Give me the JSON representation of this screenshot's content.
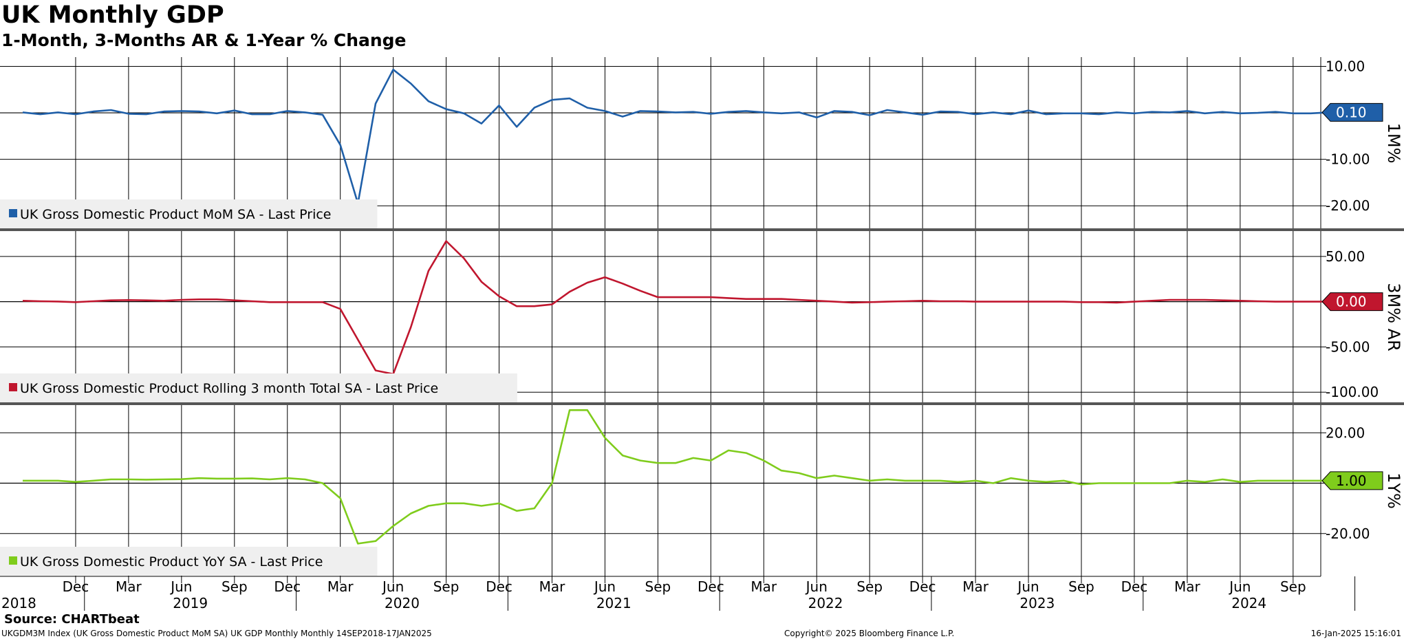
{
  "header": {
    "title": "UK Monthly GDP",
    "subtitle": "1-Month, 3-Months AR & 1-Year % Change"
  },
  "footer": {
    "source": "Source: CHARTbeat",
    "left": "UKGDM3M Index (UK Gross Domestic Product MoM SA) UK GDP Monthly  Monthly 14SEP2018-17JAN2025",
    "middle": "Copyright© 2025 Bloomberg Finance L.P.",
    "right": "16-Jan-2025 15:16:01"
  },
  "chart_data": [
    {
      "type": "line",
      "axis_label": "1M%",
      "ylim": [
        -25,
        12
      ],
      "yticks": [
        10,
        0,
        -10,
        -20
      ],
      "ytick_labels": [
        "10.00",
        "",
        "-10.00",
        "-20.00"
      ],
      "last_value_label": "0.10",
      "color": "#1f5fa8",
      "legend": "UK Gross Domestic Product MoM SA - Last Price",
      "start": "2018-09",
      "values": [
        0.1,
        -0.3,
        0.1,
        -0.3,
        0.3,
        0.6,
        -0.2,
        -0.3,
        0.3,
        0.4,
        0.3,
        -0.1,
        0.5,
        -0.3,
        -0.3,
        0.4,
        0.1,
        -0.4,
        -6.9,
        -19.5,
        2.0,
        9.3,
        6.3,
        2.5,
        0.8,
        -0.1,
        -2.3,
        1.6,
        -3.0,
        1.1,
        2.8,
        3.1,
        1.1,
        0.4,
        -0.8,
        0.4,
        0.3,
        0.1,
        0.2,
        -0.2,
        0.2,
        0.4,
        0.1,
        -0.1,
        0.1,
        -1.0,
        0.4,
        0.2,
        -0.5,
        0.6,
        0.1,
        -0.4,
        0.3,
        0.2,
        -0.3,
        0.1,
        -0.3,
        0.5,
        -0.3,
        -0.1,
        -0.1,
        -0.3,
        0.1,
        -0.1,
        0.2,
        0.1,
        0.4,
        -0.1,
        0.2,
        -0.1,
        0.0,
        0.2,
        -0.1,
        -0.1,
        0.1
      ]
    },
    {
      "type": "line",
      "axis_label": "3M% AR",
      "ylim": [
        -112,
        78
      ],
      "yticks": [
        50,
        0,
        -50,
        -100
      ],
      "ytick_labels": [
        "50.00",
        "",
        "-50.00",
        "-100.00"
      ],
      "last_value_label": "0.00",
      "color": "#c0162e",
      "legend": "UK Gross Domestic Product Rolling 3 month Total SA - Last Price",
      "start": "2018-09",
      "values": [
        1,
        0.5,
        0.2,
        -0.5,
        0.5,
        1.5,
        1.8,
        1.5,
        1,
        2,
        2.5,
        2.5,
        1.5,
        0.5,
        -0.5,
        -0.5,
        -0.5,
        -0.5,
        -8,
        -42,
        -76,
        -80,
        -28,
        34,
        67,
        48,
        22,
        6,
        -5,
        -5,
        -3,
        11,
        21,
        27,
        20,
        12,
        5,
        5,
        5,
        5,
        4,
        3,
        3,
        3,
        2,
        1,
        0,
        -1,
        -0.5,
        0,
        0.5,
        1,
        0.5,
        0.5,
        0,
        0,
        0,
        0,
        0,
        0,
        -0.5,
        -0.5,
        -1,
        0,
        1,
        2,
        2,
        2,
        1.5,
        1,
        0.5,
        0,
        0,
        0,
        0
      ]
    },
    {
      "type": "line",
      "axis_label": "1Y%",
      "ylim": [
        -37,
        31
      ],
      "yticks": [
        20,
        0,
        -20
      ],
      "ytick_labels": [
        "20.00",
        "",
        "-20.00"
      ],
      "last_value_label": "1.00",
      "color": "#7fcc1c",
      "legend": "UK Gross Domestic Product YoY SA - Last Price",
      "start": "2018-09",
      "values": [
        1,
        1,
        1,
        0.5,
        1,
        1.5,
        1.5,
        1.4,
        1.5,
        1.6,
        2,
        1.8,
        1.8,
        1.9,
        1.5,
        2,
        1.5,
        0,
        -6,
        -24,
        -23,
        -17,
        -12,
        -9,
        -8,
        -8,
        -9,
        -8,
        -11,
        -10,
        0,
        29,
        29,
        18,
        11,
        9,
        8,
        8,
        10,
        9,
        13,
        12,
        9,
        5,
        4,
        2,
        3,
        2,
        1,
        1.5,
        1,
        1,
        1,
        0.5,
        1,
        0,
        2,
        1,
        0.5,
        1,
        -0.5,
        0,
        0,
        0,
        0,
        0,
        1,
        0.5,
        1.5,
        0.5,
        1,
        1,
        1,
        1,
        1
      ]
    }
  ],
  "x_axis": {
    "month_labels": [
      "Dec",
      "Mar",
      "Jun",
      "Sep",
      "Dec",
      "Mar",
      "Jun",
      "Sep",
      "Dec",
      "Mar",
      "Jun",
      "Sep",
      "Dec",
      "Mar",
      "Jun",
      "Sep",
      "Dec",
      "Mar",
      "Jun",
      "Sep",
      "Dec",
      "Mar",
      "Jun",
      "Sep"
    ],
    "year_labels": [
      "2018",
      "2019",
      "2020",
      "2021",
      "2022",
      "2023",
      "2024"
    ]
  }
}
